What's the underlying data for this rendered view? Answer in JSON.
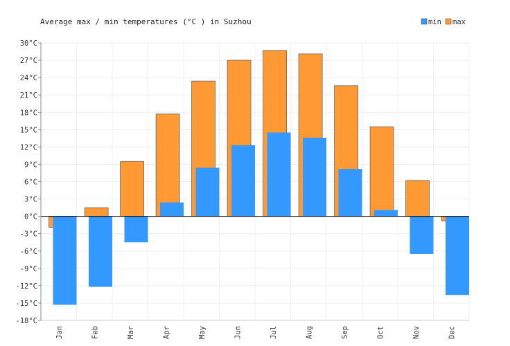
{
  "chart_data": {
    "type": "bar",
    "title": "Average max / min temperatures (°C ) in Suzhou",
    "xlabel": "",
    "ylabel": "",
    "categories": [
      "Jan",
      "Feb",
      "Mar",
      "Apr",
      "May",
      "Jun",
      "Jul",
      "Aug",
      "Sep",
      "Oct",
      "Nov",
      "Dec"
    ],
    "series": [
      {
        "name": "min",
        "color": "#3399ff",
        "values": [
          -15.3,
          -12.2,
          -4.5,
          2.4,
          8.4,
          12.3,
          14.5,
          13.6,
          8.2,
          1.1,
          -6.5,
          -13.6
        ]
      },
      {
        "name": "max",
        "color": "#ff9933",
        "values": [
          -1.9,
          1.5,
          9.5,
          17.7,
          23.4,
          27.0,
          28.7,
          28.1,
          22.6,
          15.5,
          6.2,
          -0.8
        ]
      }
    ],
    "ylim": [
      -18,
      30
    ],
    "yticks": [
      "30°C",
      "27°C",
      "24°C",
      "21°C",
      "18°C",
      "15°C",
      "12°C",
      "9°C",
      "6°C",
      "3°C",
      "0°C",
      "-3°C",
      "-6°C",
      "-9°C",
      "-12°C",
      "-15°C",
      "-18°C"
    ],
    "grid": true,
    "legend_position": "top-right"
  }
}
